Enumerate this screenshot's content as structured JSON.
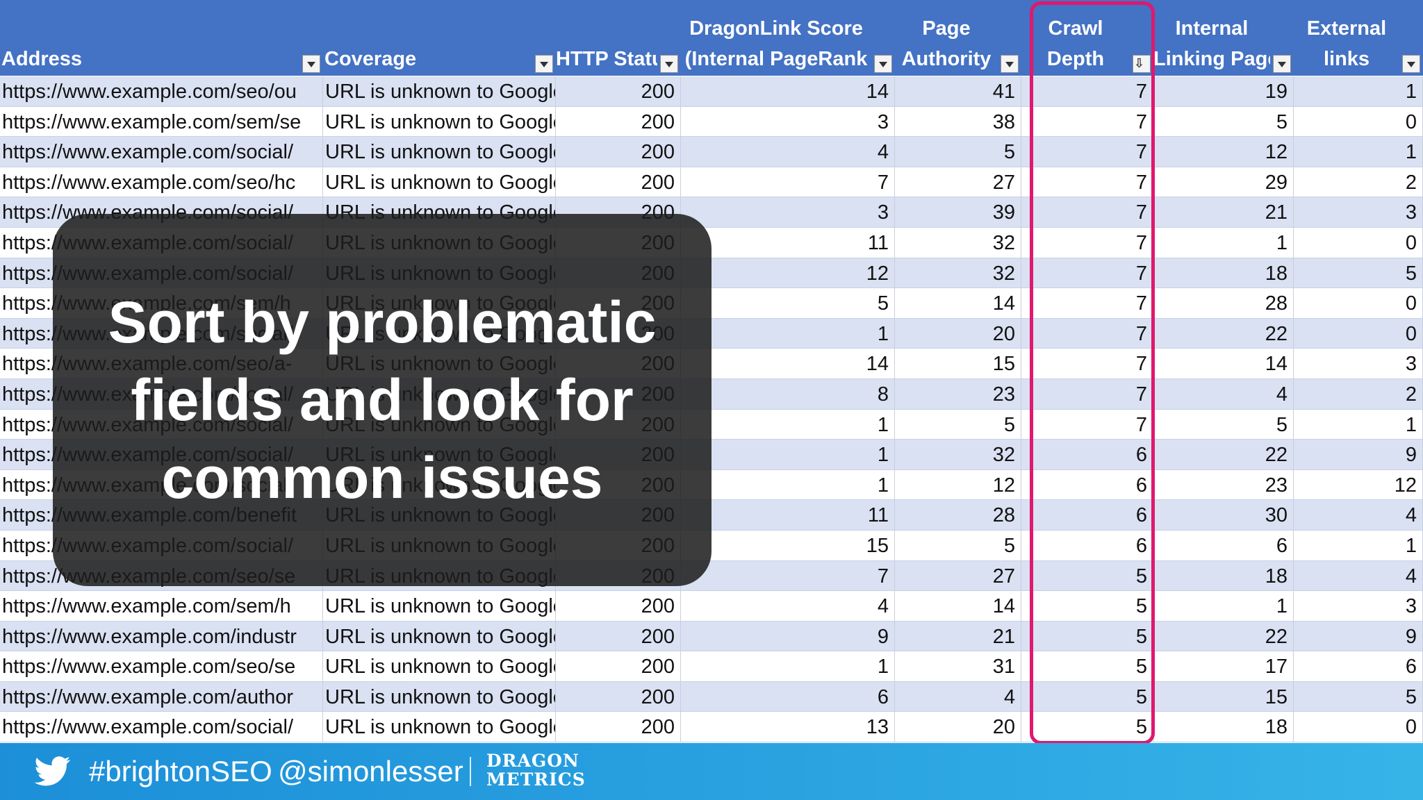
{
  "columns": [
    {
      "key": "address",
      "lines": [
        "",
        "Address"
      ],
      "align": "left"
    },
    {
      "key": "coverage",
      "lines": [
        "",
        "Coverage"
      ],
      "align": "left"
    },
    {
      "key": "http_status",
      "lines": [
        "",
        "HTTP Statu"
      ],
      "align": "center"
    },
    {
      "key": "dragonlink_score",
      "lines": [
        "DragonLink Score",
        "(Internal PageRank"
      ],
      "align": "center"
    },
    {
      "key": "page_authority",
      "lines": [
        "Page",
        "Authority"
      ],
      "align": "center"
    },
    {
      "key": "crawl_depth",
      "lines": [
        "Crawl",
        "Depth"
      ],
      "align": "center",
      "sorted": true
    },
    {
      "key": "internal_linking_pages",
      "lines": [
        "Internal",
        "Linking Page"
      ],
      "align": "center"
    },
    {
      "key": "external_links",
      "lines": [
        "External",
        "links"
      ],
      "align": "center"
    }
  ],
  "rows": [
    [
      "https://www.example.com/seo/ou",
      "URL is unknown to Google",
      "200",
      "14",
      "41",
      "7",
      "19",
      "1"
    ],
    [
      "https://www.example.com/sem/se",
      "URL is unknown to Google",
      "200",
      "3",
      "38",
      "7",
      "5",
      "0"
    ],
    [
      "https://www.example.com/social/",
      "URL is unknown to Google",
      "200",
      "4",
      "5",
      "7",
      "12",
      "1"
    ],
    [
      "https://www.example.com/seo/hc",
      "URL is unknown to Google",
      "200",
      "7",
      "27",
      "7",
      "29",
      "2"
    ],
    [
      "https://www.example.com/social/",
      "URL is unknown to Google",
      "200",
      "3",
      "39",
      "7",
      "21",
      "3"
    ],
    [
      "https://www.example.com/social/",
      "URL is unknown to Google",
      "200",
      "11",
      "32",
      "7",
      "1",
      "0"
    ],
    [
      "https://www.example.com/social/",
      "URL is unknown to Google",
      "200",
      "12",
      "32",
      "7",
      "18",
      "5"
    ],
    [
      "https://www.example.com/sem/h",
      "URL is unknown to Google",
      "200",
      "5",
      "14",
      "7",
      "28",
      "0"
    ],
    [
      "https://www.example.com/social/",
      "URL is unknown to Google",
      "200",
      "1",
      "20",
      "7",
      "22",
      "0"
    ],
    [
      "https://www.example.com/seo/a-",
      "URL is unknown to Google",
      "200",
      "14",
      "15",
      "7",
      "14",
      "3"
    ],
    [
      "https://www.example.com/social/",
      "URL is unknown to Google",
      "200",
      "8",
      "23",
      "7",
      "4",
      "2"
    ],
    [
      "https://www.example.com/social/",
      "URL is unknown to Google",
      "200",
      "1",
      "5",
      "7",
      "5",
      "1"
    ],
    [
      "https://www.example.com/social/",
      "URL is unknown to Google",
      "200",
      "1",
      "32",
      "6",
      "22",
      "9"
    ],
    [
      "https://www.example.com/social/",
      "URL is unknown to Google",
      "200",
      "1",
      "12",
      "6",
      "23",
      "12"
    ],
    [
      "https://www.example.com/benefit",
      "URL is unknown to Google",
      "200",
      "11",
      "28",
      "6",
      "30",
      "4"
    ],
    [
      "https://www.example.com/social/",
      "URL is unknown to Google",
      "200",
      "15",
      "5",
      "6",
      "6",
      "1"
    ],
    [
      "https://www.example.com/seo/se",
      "URL is unknown to Google",
      "200",
      "7",
      "27",
      "5",
      "18",
      "4"
    ],
    [
      "https://www.example.com/sem/h",
      "URL is unknown to Google",
      "200",
      "4",
      "14",
      "5",
      "1",
      "3"
    ],
    [
      "https://www.example.com/industr",
      "URL is unknown to Google",
      "200",
      "9",
      "21",
      "5",
      "22",
      "9"
    ],
    [
      "https://www.example.com/seo/se",
      "URL is unknown to Google",
      "200",
      "1",
      "31",
      "5",
      "17",
      "6"
    ],
    [
      "https://www.example.com/author",
      "URL is unknown to Google",
      "200",
      "6",
      "4",
      "5",
      "15",
      "5"
    ],
    [
      "https://www.example.com/social/",
      "URL is unknown to Google",
      "200",
      "13",
      "20",
      "5",
      "18",
      "0"
    ]
  ],
  "overlay": {
    "lines": [
      "Sort by problematic",
      "fields and look for",
      "common issues"
    ]
  },
  "footer": {
    "twitter_icon": "twitter-bird-icon",
    "hashtag": "#brightonSEO",
    "handle": "@simonlesser",
    "logo_lines": [
      "DRAGON",
      "METRICS"
    ]
  },
  "colors": {
    "header_bg": "#4472c4",
    "row_alt_bg": "#d9e1f2",
    "highlight": "#e0186e",
    "footer_bg": "#2aa2e0"
  }
}
